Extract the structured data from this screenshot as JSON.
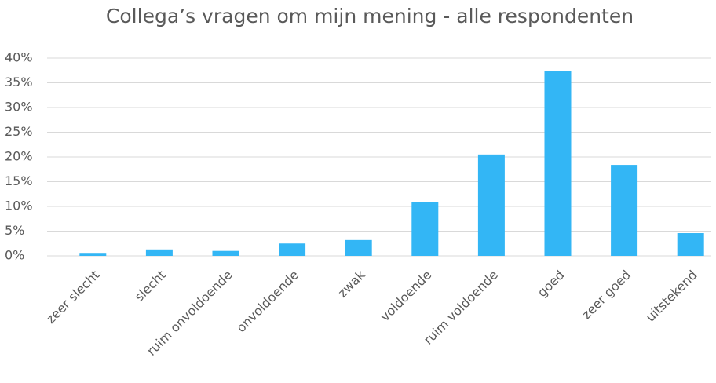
{
  "chart_data": {
    "type": "bar",
    "title": "Collega’s vragen om mijn mening  - alle respondenten",
    "categories": [
      "zeer slecht",
      "slecht",
      "ruim onvoldoende",
      "onvoldoende",
      "zwak",
      "voldoende",
      "ruim voldoende",
      "goed",
      "zeer goed",
      "uitstekend"
    ],
    "values": [
      0.6,
      1.3,
      1.0,
      2.5,
      3.2,
      10.8,
      20.5,
      37.3,
      18.4,
      4.6
    ],
    "color": "#33b6f5",
    "ylim": [
      0,
      40
    ],
    "yticks": [
      {
        "value": 0,
        "label": "0%"
      },
      {
        "value": 5,
        "label": "5%"
      },
      {
        "value": 10,
        "label": "10%"
      },
      {
        "value": 15,
        "label": "15%"
      },
      {
        "value": 20,
        "label": "20%"
      },
      {
        "value": 25,
        "label": "25%"
      },
      {
        "value": 30,
        "label": "30%"
      },
      {
        "value": 35,
        "label": "35%"
      },
      {
        "value": 40,
        "label": "40%"
      }
    ],
    "grid": true
  }
}
